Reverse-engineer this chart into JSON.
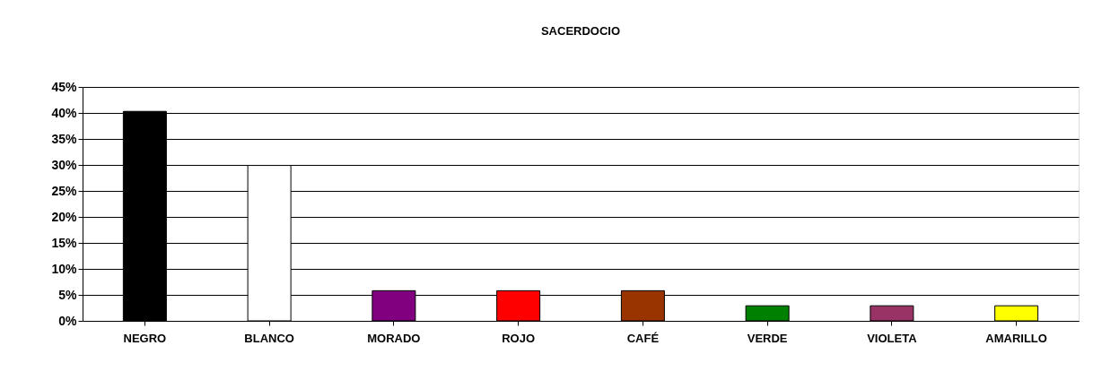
{
  "chart_data": {
    "type": "bar",
    "title": "SACERDOCIO",
    "categories": [
      "NEGRO",
      "BLANCO",
      "MORADO",
      "ROJO",
      "CAFÉ",
      "VERDE",
      "VIOLETA",
      "AMARILLO"
    ],
    "values": [
      40.3,
      29.9,
      5.8,
      5.8,
      5.8,
      2.9,
      2.9,
      2.9
    ],
    "colors": [
      "#000000",
      "#ffffff",
      "#800080",
      "#ff0000",
      "#993300",
      "#008000",
      "#993366",
      "#ffff00"
    ],
    "ylim": [
      0,
      45
    ],
    "yticks": [
      {
        "value": 0,
        "label": "0%"
      },
      {
        "value": 5,
        "label": "5%"
      },
      {
        "value": 10,
        "label": "10%"
      },
      {
        "value": 15,
        "label": "15%"
      },
      {
        "value": 20,
        "label": "20%"
      },
      {
        "value": 25,
        "label": "25%"
      },
      {
        "value": 30,
        "label": "30%"
      },
      {
        "value": 35,
        "label": "35%"
      },
      {
        "value": 40,
        "label": "40%"
      },
      {
        "value": 45,
        "label": "45%"
      }
    ],
    "grid": "y"
  }
}
